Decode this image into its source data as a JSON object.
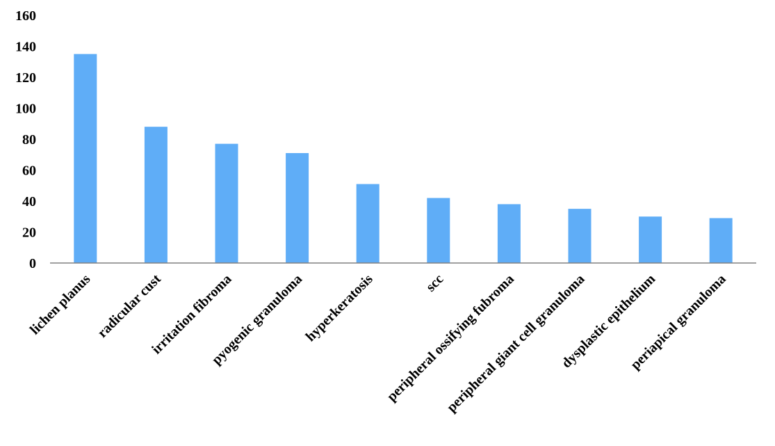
{
  "chart_data": {
    "type": "bar",
    "title": "",
    "xlabel": "",
    "ylabel": "",
    "categories": [
      "lichen planus",
      "radicular cust",
      "irritation fibroma",
      "pyogenic granuloma",
      "hyperkeratosis",
      "scc",
      "peripheral ossifying fubroma",
      "peripheral giant cell granuloma",
      "dysplastic epithelium",
      "periapical granuloma"
    ],
    "values": [
      135,
      88,
      77,
      71,
      51,
      42,
      38,
      35,
      30,
      29
    ],
    "ylim": [
      0,
      160
    ],
    "yticks": [
      "0",
      "20",
      "40",
      "60",
      "80",
      "100",
      "120",
      "140",
      "160"
    ],
    "grid": false,
    "legend": "none",
    "bar_color": "#5FADF7",
    "axis_color": "#808080"
  }
}
